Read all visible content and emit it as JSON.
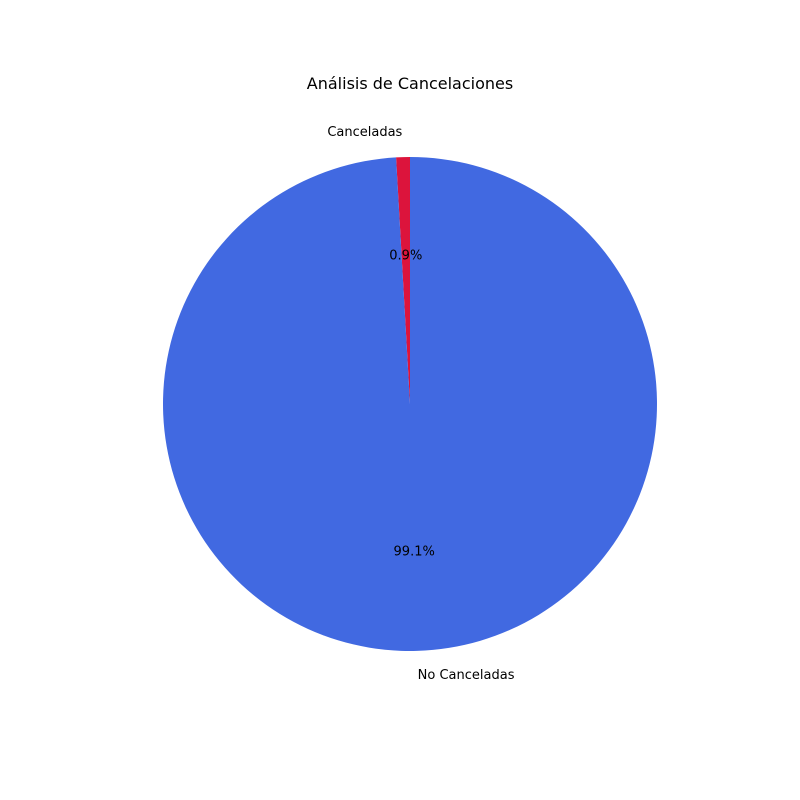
{
  "chart_data": {
    "type": "pie",
    "title": "Análisis de Cancelaciones",
    "categories": [
      "Canceladas",
      "No Canceladas"
    ],
    "values": [
      0.9,
      99.1
    ],
    "value_labels": [
      "0.9%",
      "99.1%"
    ],
    "colors": [
      "#DC143C",
      "#4169E1"
    ],
    "start_angle_deg": 90,
    "direction": "counterclockwise",
    "legend": "none"
  }
}
